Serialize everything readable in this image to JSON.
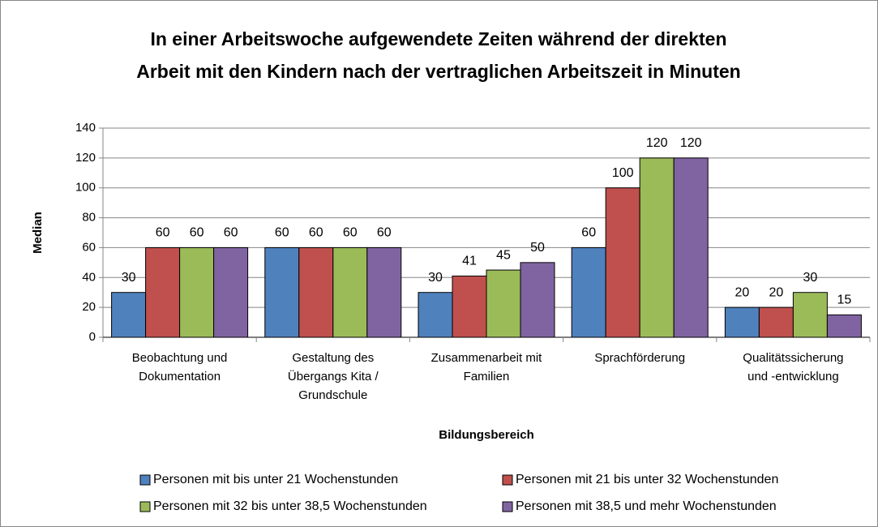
{
  "chart_data": {
    "type": "bar",
    "title": [
      "In einer Arbeitswoche aufgewendete Zeiten während der direkten",
      "Arbeit mit den Kindern nach der vertraglichen Arbeitszeit in Minuten"
    ],
    "y_label": "Median",
    "x_label": "Bildungsbereich",
    "categories": [
      [
        "Beobachtung und",
        "Dokumentation"
      ],
      [
        "Gestaltung des",
        "Übergangs Kita /",
        "Grundschule"
      ],
      [
        "Zusammenarbeit mit",
        "Familien"
      ],
      [
        "Sprachförderung"
      ],
      [
        "Qualitätssicherung",
        "und -entwicklung"
      ]
    ],
    "series": [
      {
        "name": "Personen mit bis unter 21 Wochenstunden",
        "color": "#4f81bd",
        "values": [
          30,
          60,
          30,
          60,
          20
        ]
      },
      {
        "name": "Personen mit 21 bis unter 32 Wochenstunden",
        "color": "#c0504d",
        "values": [
          60,
          60,
          41,
          100,
          20
        ]
      },
      {
        "name": "Personen mit 32 bis unter 38,5 Wochenstunden",
        "color": "#9bbb59",
        "values": [
          60,
          60,
          45,
          120,
          30
        ]
      },
      {
        "name": "Personen mit 38,5 und mehr Wochenstunden",
        "color": "#8064a2",
        "values": [
          60,
          60,
          50,
          120,
          15
        ]
      }
    ],
    "ylim": [
      0,
      140
    ],
    "yticks": [
      0,
      20,
      40,
      60,
      80,
      100,
      120,
      140
    ],
    "grid": true,
    "legend": "bottom"
  }
}
